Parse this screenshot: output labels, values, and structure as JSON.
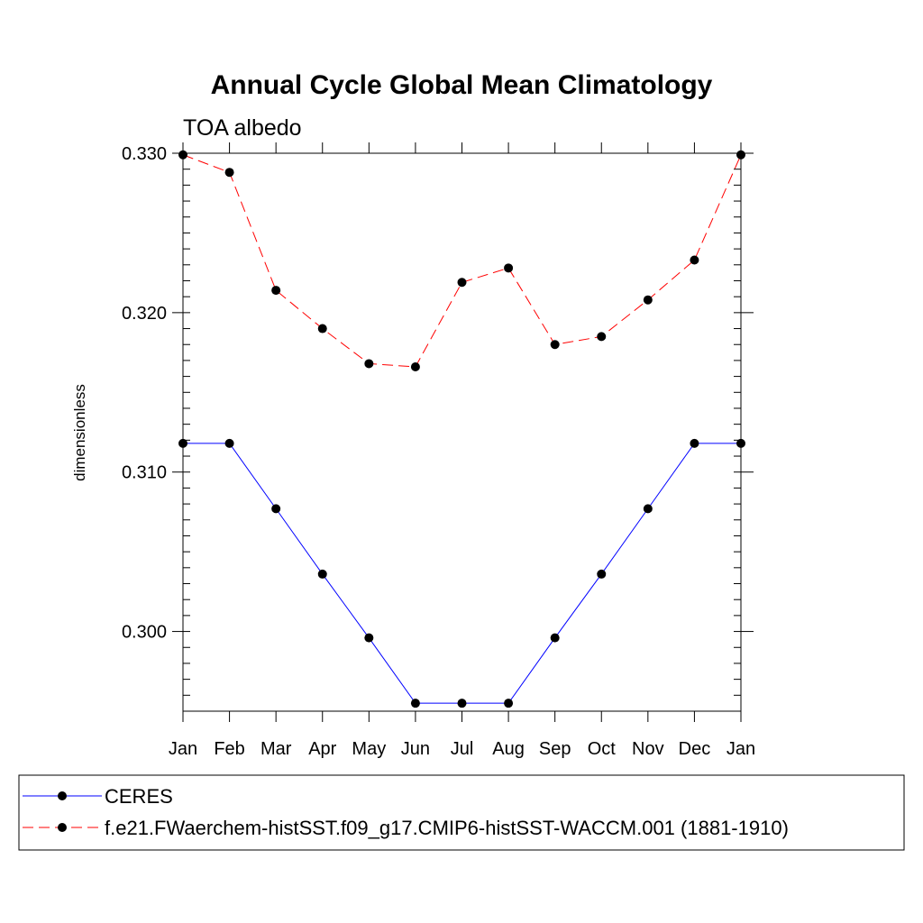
{
  "chart_data": {
    "type": "line",
    "title": "Annual Cycle Global Mean Climatology",
    "subtitle": "TOA albedo",
    "xlabel": "",
    "ylabel": "dimensionless",
    "x": [
      "Jan",
      "Feb",
      "Mar",
      "Apr",
      "May",
      "Jun",
      "Jul",
      "Aug",
      "Sep",
      "Oct",
      "Nov",
      "Dec",
      "Jan"
    ],
    "ylim": [
      0.295,
      0.33
    ],
    "yticks": [
      0.3,
      0.31,
      0.32,
      0.33
    ],
    "ytick_labels": [
      "0.300",
      "0.310",
      "0.320",
      "0.330"
    ],
    "yminor_step": 0.001,
    "grid": false,
    "legend_position": "bottom",
    "series": [
      {
        "name": "CERES",
        "color": "#0000ff",
        "dash": "solid",
        "values": [
          0.3118,
          0.3118,
          0.3077,
          0.3036,
          0.2996,
          0.2955,
          0.2955,
          0.2955,
          0.2996,
          0.3036,
          0.3077,
          0.3118,
          0.3118
        ]
      },
      {
        "name": "f.e21.FWaerchem-histSST.f09_g17.CMIP6-histSST-WACCM.001 (1881-1910)",
        "color": "#ff0000",
        "dash": "dashed",
        "values": [
          0.3299,
          0.3288,
          0.3214,
          0.319,
          0.3168,
          0.3166,
          0.3219,
          0.3228,
          0.318,
          0.3185,
          0.3208,
          0.3233,
          0.3299
        ]
      }
    ],
    "marker": "filled-circle",
    "marker_color": "#000000"
  }
}
